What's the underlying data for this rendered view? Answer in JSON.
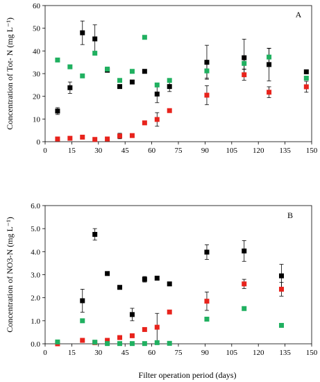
{
  "shared_xlabel": "Filter operation period (days)",
  "chart_data": [
    {
      "type": "scatter",
      "panel_label": "A",
      "ylabel": "Concentration of Tot- N (mg L⁻¹)",
      "xlim": [
        0,
        150
      ],
      "ylim": [
        0,
        60
      ],
      "xticks": [
        "0",
        "15",
        "30",
        "45",
        "60",
        "75",
        "90",
        "105",
        "120",
        "135",
        "150"
      ],
      "yticks": [
        "0",
        "10",
        "20",
        "30",
        "40",
        "50",
        "60"
      ],
      "grid": false,
      "series": [
        {
          "color": "#000000",
          "points": [
            {
              "x": 7,
              "y": 13.5,
              "err": 1.5
            },
            {
              "x": 14,
              "y": 23.8,
              "err": 2.5
            },
            {
              "x": 21,
              "y": 48,
              "err": 5.2
            },
            {
              "x": 28,
              "y": 45.3,
              "err": 6.2
            },
            {
              "x": 35,
              "y": 31.5
            },
            {
              "x": 42,
              "y": 24.3
            },
            {
              "x": 49,
              "y": 26.3
            },
            {
              "x": 56,
              "y": 31
            },
            {
              "x": 63,
              "y": 21,
              "err": 3.8
            },
            {
              "x": 70,
              "y": 24.3,
              "err": 2.2
            },
            {
              "x": 91,
              "y": 35,
              "err": 7.5
            },
            {
              "x": 112,
              "y": 37,
              "err": 8.2
            },
            {
              "x": 126,
              "y": 34,
              "err": 7.2
            },
            {
              "x": 147,
              "y": 30.8
            }
          ]
        },
        {
          "color": "#e8231c",
          "points": [
            {
              "x": 7,
              "y": 1.2
            },
            {
              "x": 14,
              "y": 1.5
            },
            {
              "x": 21,
              "y": 2
            },
            {
              "x": 28,
              "y": 1
            },
            {
              "x": 35,
              "y": 1.2
            },
            {
              "x": 42,
              "y": 2.5,
              "err": 1.2
            },
            {
              "x": 49,
              "y": 2.7
            },
            {
              "x": 56,
              "y": 8.3
            },
            {
              "x": 63,
              "y": 9.8,
              "err": 3
            },
            {
              "x": 70,
              "y": 13.7
            },
            {
              "x": 91,
              "y": 20.5,
              "err": 4.2
            },
            {
              "x": 112,
              "y": 29.5,
              "err": 2.4
            },
            {
              "x": 126,
              "y": 21.8,
              "err": 2.4
            },
            {
              "x": 147,
              "y": 24.2,
              "err": 2.4
            }
          ]
        },
        {
          "color": "#20b060",
          "points": [
            {
              "x": 7,
              "y": 36
            },
            {
              "x": 14,
              "y": 33
            },
            {
              "x": 21,
              "y": 29
            },
            {
              "x": 28,
              "y": 39
            },
            {
              "x": 35,
              "y": 32
            },
            {
              "x": 42,
              "y": 27
            },
            {
              "x": 49,
              "y": 31
            },
            {
              "x": 56,
              "y": 46
            },
            {
              "x": 63,
              "y": 25
            },
            {
              "x": 70,
              "y": 27
            },
            {
              "x": 91,
              "y": 31.2,
              "err": 3.2
            },
            {
              "x": 112,
              "y": 34.5,
              "err": 2.5
            },
            {
              "x": 126,
              "y": 37.3,
              "err": 3.8
            },
            {
              "x": 147,
              "y": 28
            }
          ]
        }
      ]
    },
    {
      "type": "scatter",
      "panel_label": "B",
      "ylabel": "Concentration of NO3-N (mg L⁻¹)",
      "xlim": [
        0,
        150
      ],
      "ylim": [
        0,
        6
      ],
      "xticks": [
        "0",
        "15",
        "30",
        "45",
        "60",
        "75",
        "90",
        "105",
        "120",
        "135",
        "150"
      ],
      "yticks": [
        "0.0",
        "1.0",
        "2.0",
        "3.0",
        "4.0",
        "5.0",
        "6.0"
      ],
      "grid": false,
      "series": [
        {
          "color": "#000000",
          "points": [
            {
              "x": 21,
              "y": 1.87,
              "err": 0.5
            },
            {
              "x": 28,
              "y": 4.75,
              "err": 0.25
            },
            {
              "x": 35,
              "y": 3.05
            },
            {
              "x": 42,
              "y": 2.45
            },
            {
              "x": 49,
              "y": 1.27,
              "err": 0.27
            },
            {
              "x": 56,
              "y": 2.8,
              "err": 0.12
            },
            {
              "x": 63,
              "y": 2.85
            },
            {
              "x": 70,
              "y": 2.6
            },
            {
              "x": 91,
              "y": 3.98,
              "err": 0.32
            },
            {
              "x": 112,
              "y": 4.03,
              "err": 0.45
            },
            {
              "x": 133,
              "y": 2.95,
              "err": 0.5
            }
          ]
        },
        {
          "color": "#e8231c",
          "points": [
            {
              "x": 7,
              "y": 0
            },
            {
              "x": 21,
              "y": 0.15
            },
            {
              "x": 28,
              "y": 0.05
            },
            {
              "x": 35,
              "y": 0.15
            },
            {
              "x": 42,
              "y": 0.27
            },
            {
              "x": 49,
              "y": 0.35
            },
            {
              "x": 56,
              "y": 0.62
            },
            {
              "x": 63,
              "y": 0.72,
              "err": 0.6
            },
            {
              "x": 70,
              "y": 1.38
            },
            {
              "x": 91,
              "y": 1.85,
              "err": 0.4
            },
            {
              "x": 112,
              "y": 2.6,
              "err": 0.2
            },
            {
              "x": 133,
              "y": 2.37,
              "err": 0.3
            }
          ]
        },
        {
          "color": "#20b060",
          "points": [
            {
              "x": 7,
              "y": 0.08
            },
            {
              "x": 21,
              "y": 1
            },
            {
              "x": 28,
              "y": 0.07
            },
            {
              "x": 35,
              "y": 0.01
            },
            {
              "x": 42,
              "y": 0.01
            },
            {
              "x": 49,
              "y": 0.01
            },
            {
              "x": 56,
              "y": 0.01
            },
            {
              "x": 63,
              "y": 0.05
            },
            {
              "x": 70,
              "y": 0.02
            },
            {
              "x": 91,
              "y": 1.07
            },
            {
              "x": 112,
              "y": 1.53
            },
            {
              "x": 133,
              "y": 0.8
            }
          ]
        }
      ]
    }
  ]
}
